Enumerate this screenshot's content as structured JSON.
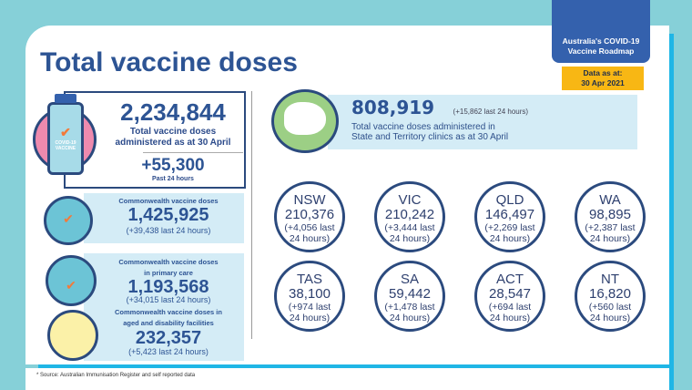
{
  "title": "Total vaccine doses",
  "roadmap": [
    "Australia's COVID-19",
    "Vaccine Roadmap"
  ],
  "data_as_at": [
    "Data as at:",
    "30 Apr 2021"
  ],
  "total": {
    "value": "2,234,844",
    "label1": "Total vaccine doses",
    "label2": "administered as at 30 April",
    "delta": "+55,300",
    "delta_label": "Past 24 hours",
    "vial_label": "COVID-19 VACCINE"
  },
  "commonwealth": {
    "label": "Commonwealth vaccine doses",
    "value": "1,425,925",
    "delta": "(+39,438 last 24 hours)"
  },
  "primary_care": {
    "label1": "Commonwealth vaccine doses",
    "label2": "in primary care",
    "value": "1,193,568",
    "delta": "(+34,015 last 24 hours)"
  },
  "aged_care": {
    "label1": "Commonwealth vaccine doses in",
    "label2": "aged and disability facilities",
    "value": "232,357",
    "delta": "(+5,423 last 24 hours)"
  },
  "state_total": {
    "value": "808,919",
    "delta": "(+15,862 last 24 hours)",
    "label1": "Total vaccine doses administered in",
    "label2": "State and Territory clinics as at 30 April"
  },
  "states": [
    {
      "name": "NSW",
      "value": "210,376",
      "d1": "(+4,056 last",
      "d2": "24 hours)"
    },
    {
      "name": "VIC",
      "value": "210,242",
      "d1": "(+3,444 last",
      "d2": "24 hours)"
    },
    {
      "name": "QLD",
      "value": "146,497",
      "d1": "(+2,269 last",
      "d2": "24 hours)"
    },
    {
      "name": "WA",
      "value": "98,895",
      "d1": "(+2,387 last",
      "d2": "24 hours)"
    },
    {
      "name": "TAS",
      "value": "38,100",
      "d1": "(+974 last",
      "d2": "24 hours)"
    },
    {
      "name": "SA",
      "value": "59,442",
      "d1": "(+1,478 last",
      "d2": "24 hours)"
    },
    {
      "name": "ACT",
      "value": "28,547",
      "d1": "(+694 last",
      "d2": "24 hours)"
    },
    {
      "name": "NT",
      "value": "16,820",
      "d1": "(+560 last",
      "d2": "24 hours)"
    }
  ],
  "footnote": "* Source: Australian Immunisation Register and self reported data"
}
